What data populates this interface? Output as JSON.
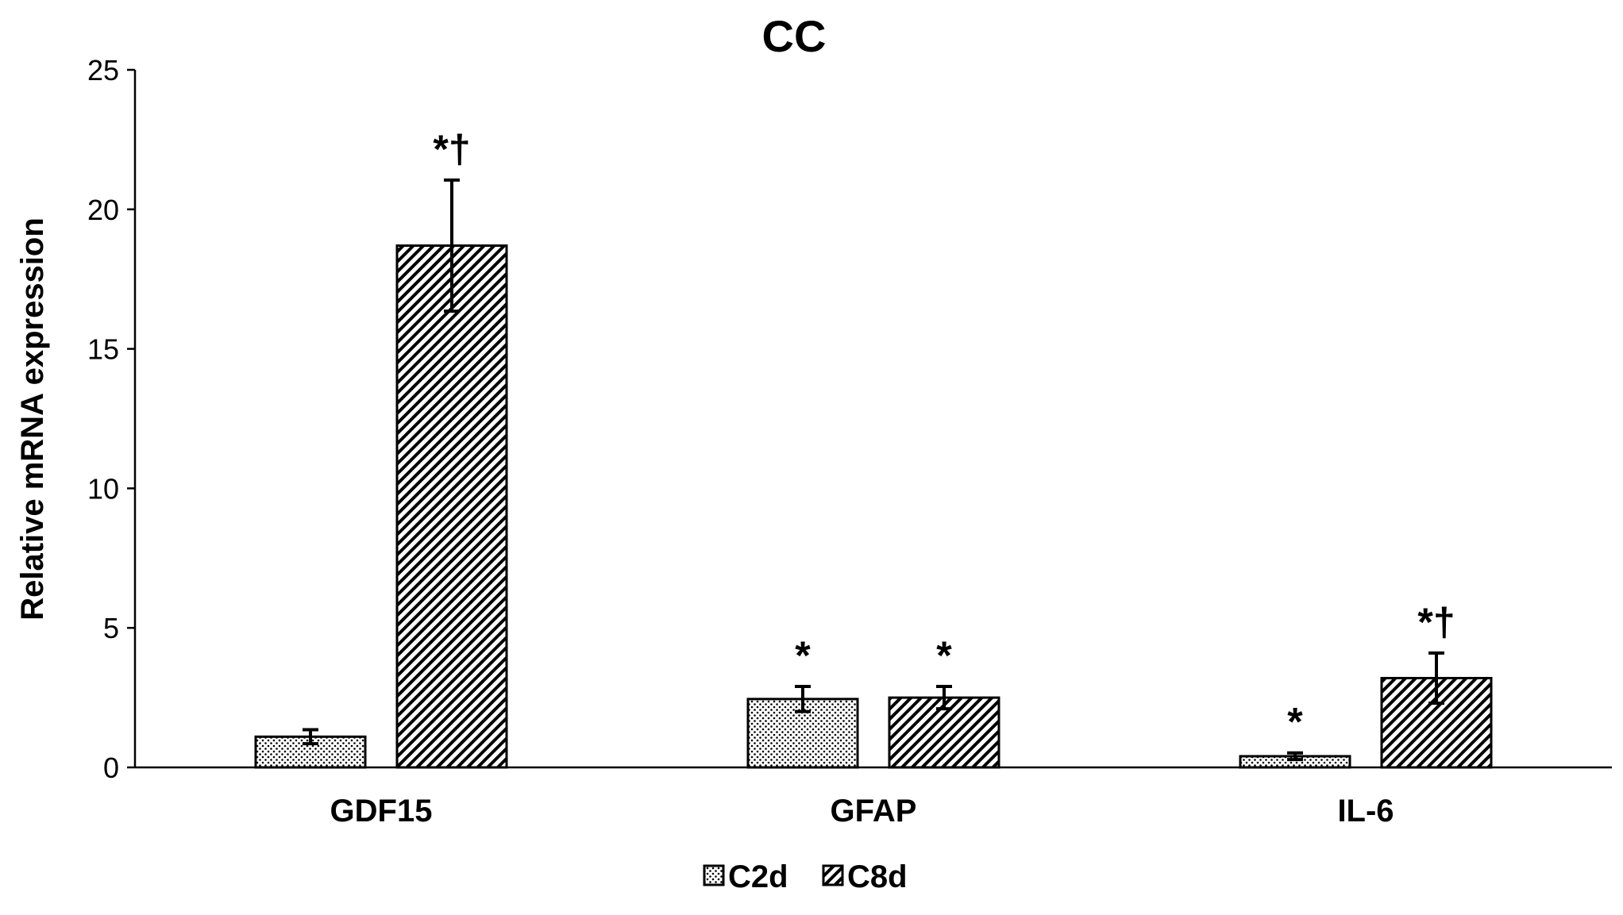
{
  "chart_data": {
    "type": "bar",
    "title": "CC",
    "xlabel": "",
    "ylabel": "Relative mRNA expression",
    "ylim": [
      0,
      25
    ],
    "yticks": [
      0,
      5,
      10,
      15,
      20,
      25
    ],
    "grid": false,
    "legend_position": "bottom-center",
    "categories": [
      "GDF15",
      "GFAP",
      "IL-6"
    ],
    "series": [
      {
        "name": "C2d",
        "pattern": "dotted",
        "values": [
          1.1,
          2.45,
          0.4
        ],
        "errors": [
          0.25,
          0.45,
          0.12
        ],
        "annotations": [
          "",
          "*",
          "*"
        ]
      },
      {
        "name": "C8d",
        "pattern": "diagonal-hatch",
        "values": [
          18.7,
          2.5,
          3.2
        ],
        "errors": [
          2.35,
          0.4,
          0.9
        ],
        "annotations": [
          "*†",
          "*",
          "*†"
        ]
      }
    ]
  },
  "colors": {
    "axis": "#000000",
    "bar_outline": "#000000",
    "bar_pattern": "#000000",
    "background": "#ffffff"
  }
}
